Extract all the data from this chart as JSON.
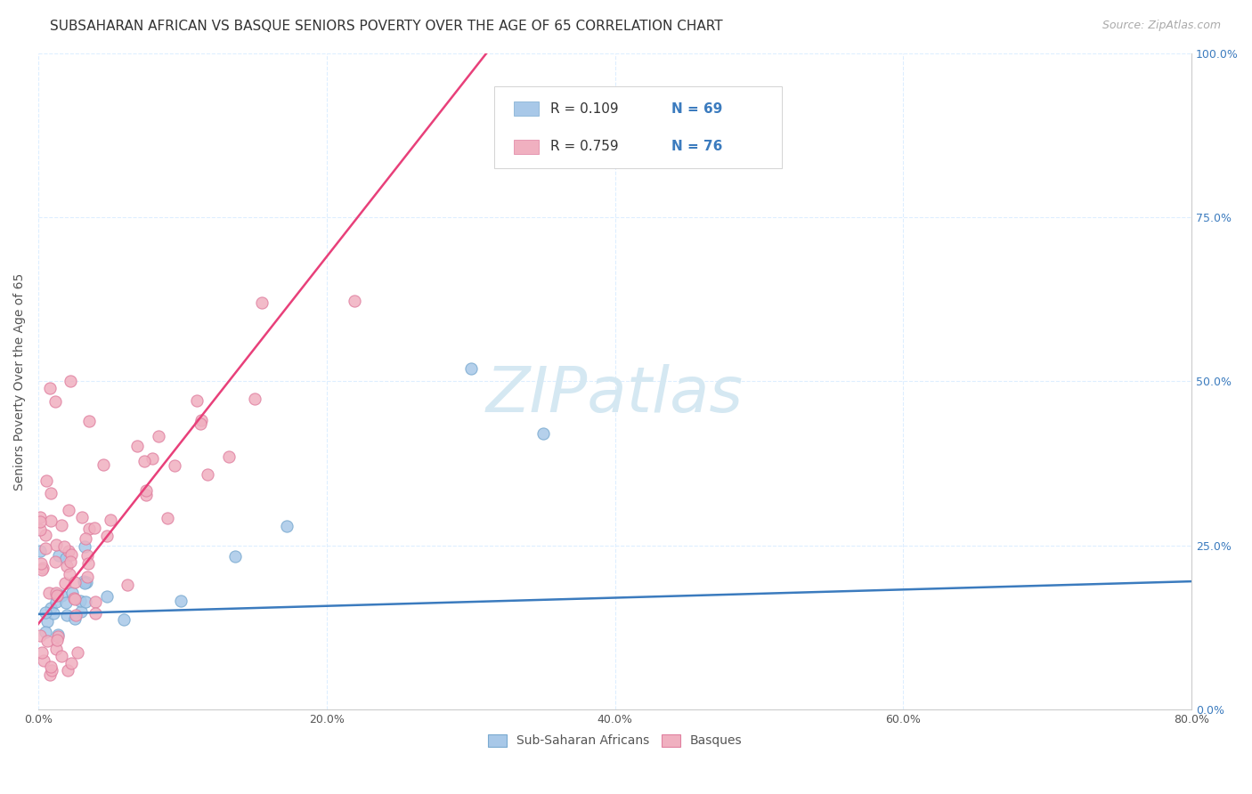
{
  "title": "SUBSAHARAN AFRICAN VS BASQUE SENIORS POVERTY OVER THE AGE OF 65 CORRELATION CHART",
  "source": "Source: ZipAtlas.com",
  "ylabel": "Seniors Poverty Over the Age of 65",
  "xlabel_ticks": [
    "0.0%",
    "20.0%",
    "40.0%",
    "60.0%",
    "80.0%"
  ],
  "xlabel_vals": [
    0.0,
    0.2,
    0.4,
    0.6,
    0.8
  ],
  "ylabel_ticks_right": [
    "100.0%",
    "75.0%",
    "50.0%",
    "25.0%",
    "0.0%"
  ],
  "ylabel_vals": [
    0.0,
    0.25,
    0.5,
    0.75,
    1.0
  ],
  "xlim": [
    0.0,
    0.8
  ],
  "ylim": [
    0.0,
    1.0
  ],
  "blue_color": "#A8C8E8",
  "pink_color": "#F0B0C0",
  "blue_line_color": "#3B7BBE",
  "pink_line_color": "#E8407A",
  "blue_edge_color": "#7AAAD0",
  "pink_edge_color": "#E080A0",
  "legend_R1": "R = 0.109",
  "legend_N1": "N = 69",
  "legend_R2": "R = 0.759",
  "legend_N2": "N = 76",
  "series1_label": "Sub-Saharan Africans",
  "series2_label": "Basques",
  "watermark": "ZIPatlas",
  "title_fontsize": 11,
  "label_fontsize": 10,
  "tick_fontsize": 9,
  "legend_fontsize": 11,
  "source_fontsize": 9,
  "watermark_fontsize": 52,
  "watermark_color": "#D5E8F2",
  "background_color": "#FFFFFF",
  "grid_color": "#DDEEFF",
  "blue_line_start_y": 0.145,
  "blue_line_end_y": 0.195,
  "pink_line_start_y": 0.13,
  "pink_line_slope": 2.8
}
